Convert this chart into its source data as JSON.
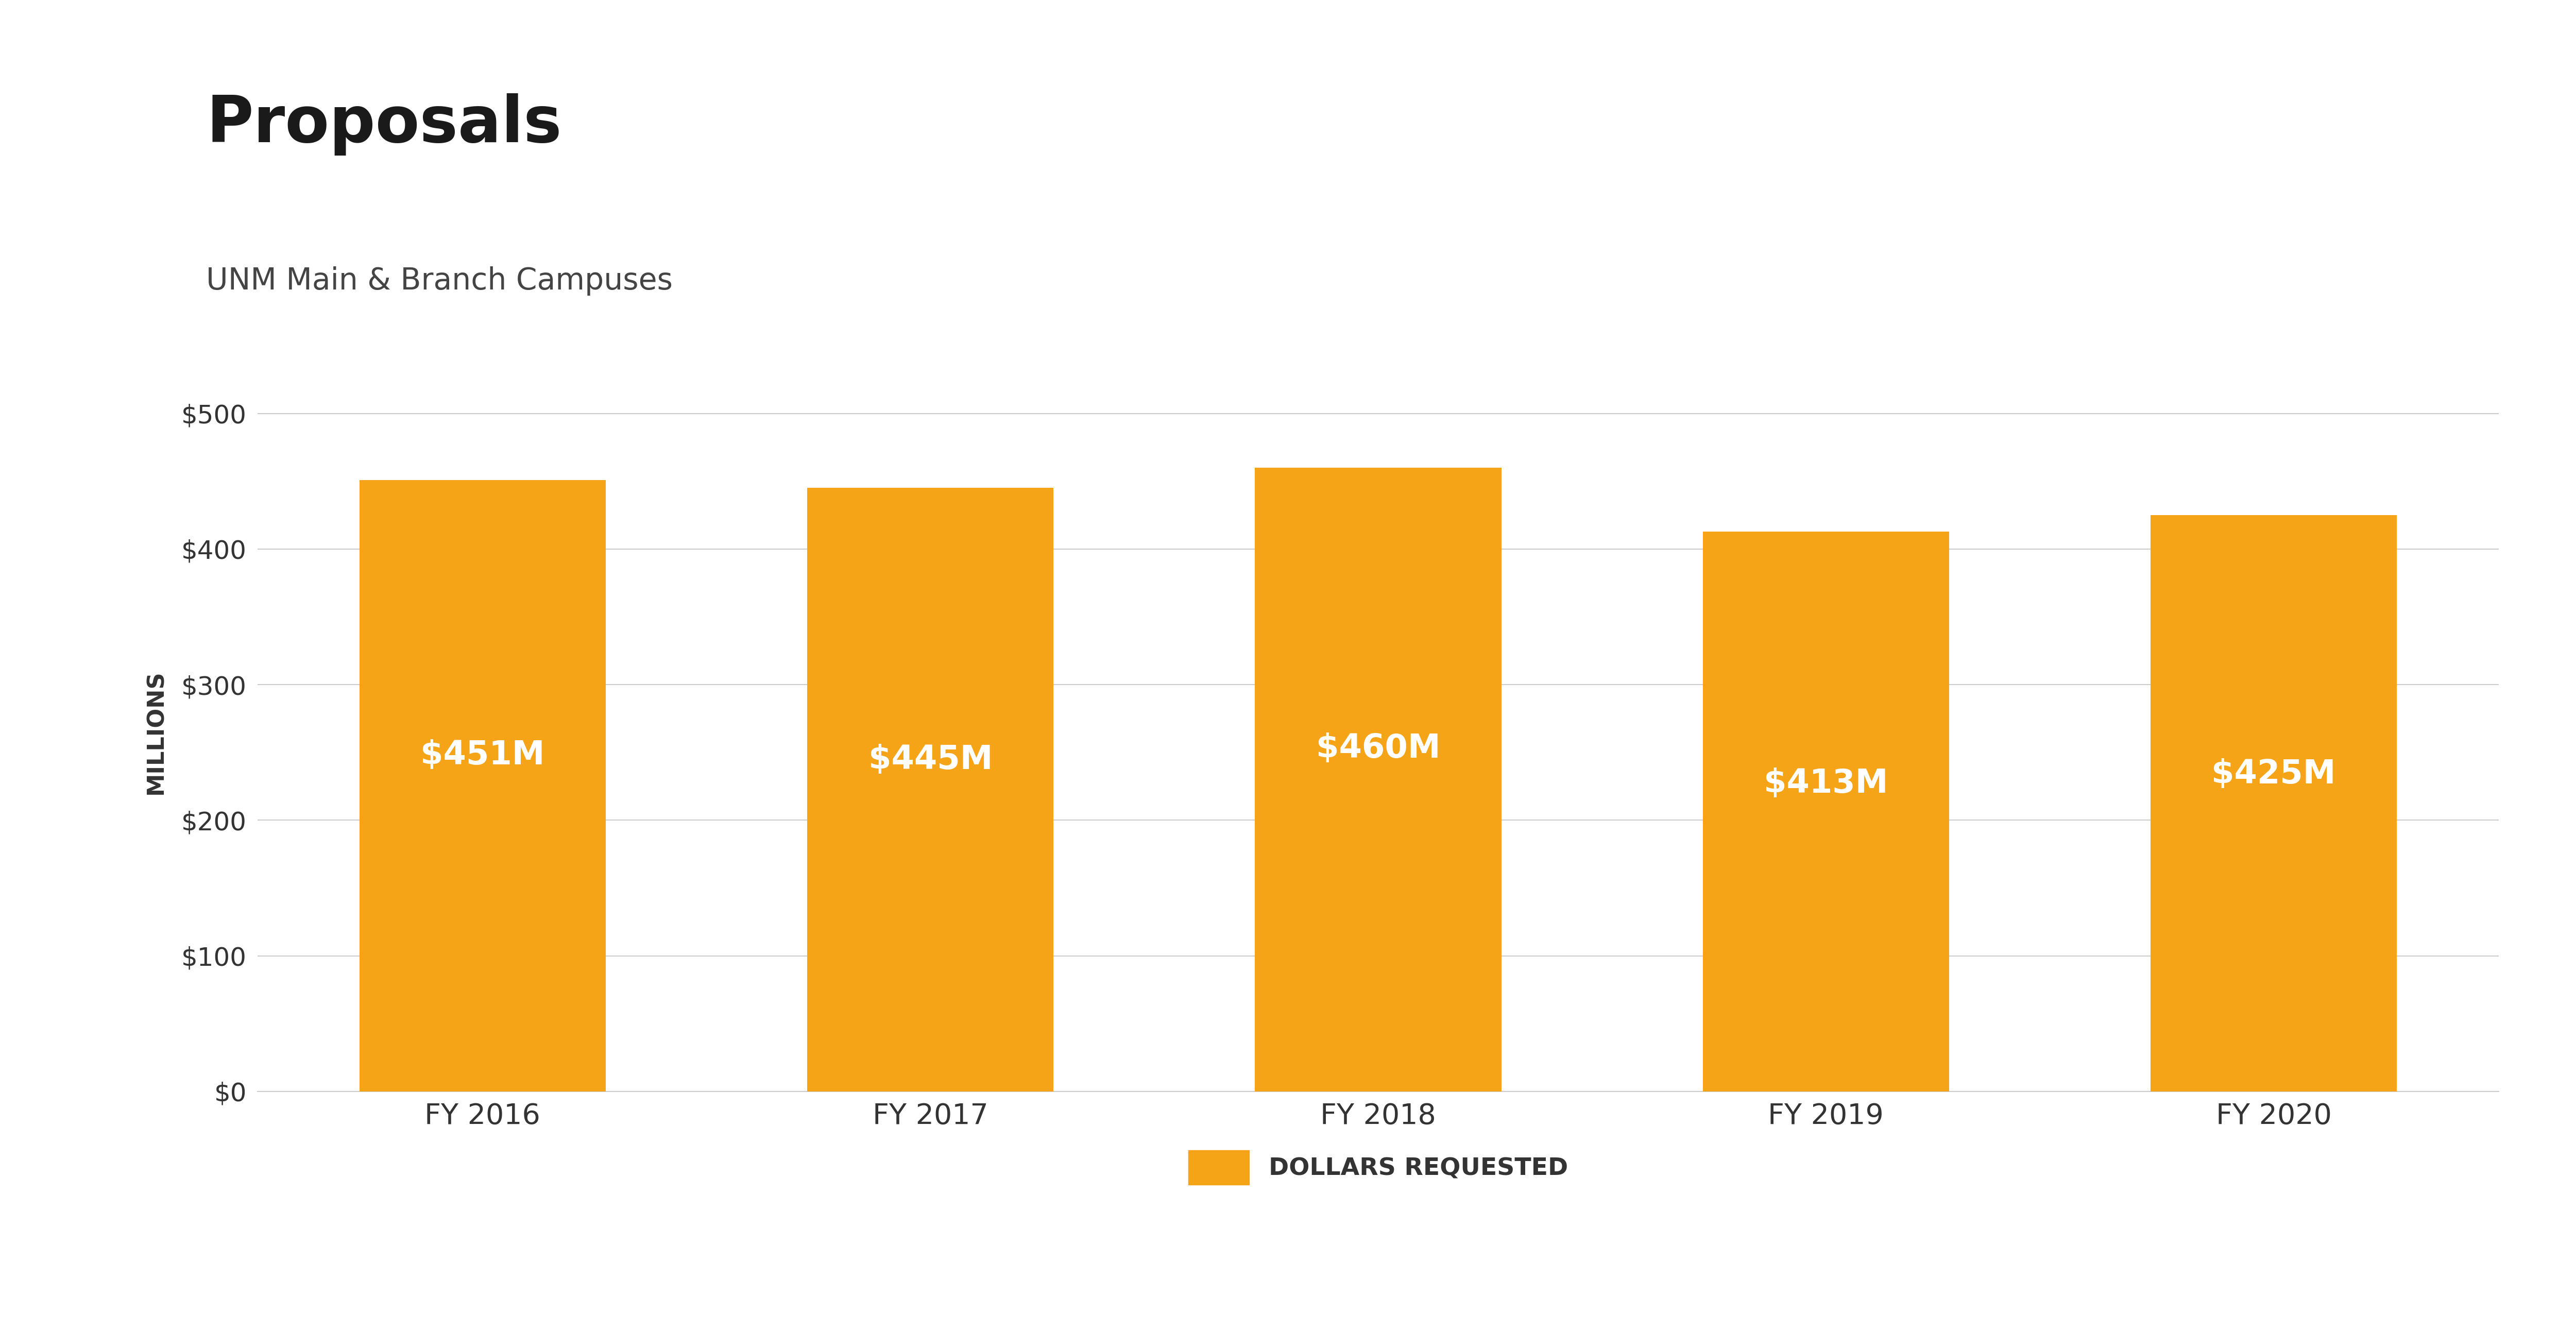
{
  "title": "Proposals",
  "subtitle": "UNM Main & Branch Campuses",
  "categories": [
    "FY 2016",
    "FY 2017",
    "FY 2018",
    "FY 2019",
    "FY 2020"
  ],
  "values": [
    451,
    445,
    460,
    413,
    425
  ],
  "bar_labels": [
    "$451M",
    "$445M",
    "$460M",
    "$413M",
    "$425M"
  ],
  "bar_color": "#F5A418",
  "background_color": "#FFFFFF",
  "ylabel": "MILLIONS",
  "yticks": [
    0,
    100,
    200,
    300,
    400,
    500
  ],
  "ytick_labels": [
    "$0",
    "$100",
    "$200",
    "$300",
    "$400",
    "$500"
  ],
  "ylim": [
    0,
    530
  ],
  "legend_label": "DOLLARS REQUESTED",
  "title_fontsize": 90,
  "subtitle_fontsize": 42,
  "bar_label_fontsize": 46,
  "xtick_fontsize": 40,
  "ytick_fontsize": 36,
  "ylabel_fontsize": 32,
  "legend_fontsize": 34,
  "title_color": "#1a1a1a",
  "subtitle_color": "#444444",
  "tick_color": "#333333",
  "grid_color": "#cccccc",
  "bar_width": 0.55
}
